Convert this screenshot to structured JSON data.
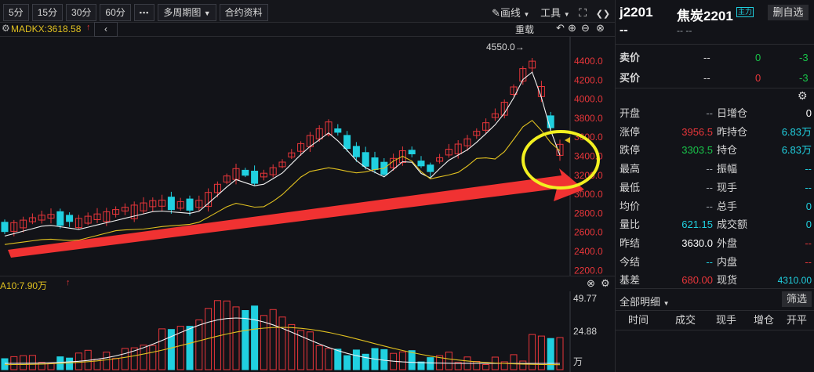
{
  "toolbar": {
    "periods": [
      "5分",
      "15分",
      "30分",
      "60分"
    ],
    "more_label": "▪▪▪",
    "multi_period_label": "多周期图",
    "contract_info_label": "合约资料",
    "draw_label": "画线",
    "tools_label": "工具"
  },
  "indicator_bar": {
    "ma_label": "MADKX:3618.58",
    "reload_label": "重载"
  },
  "price_chart": {
    "max_marker": "4550.0→",
    "axis_ticks": [
      "4400.0",
      "4200.0",
      "4000.0",
      "3800.0",
      "3600.0",
      "3400.0",
      "3200.0",
      "3000.0",
      "2800.0",
      "2600.0",
      "2400.0",
      "2200.0"
    ]
  },
  "volume_chart": {
    "label": "A10:7.90万",
    "axis_ticks": [
      "49.77",
      "24.88",
      "万"
    ]
  },
  "colors": {
    "up": "#e8363a",
    "down": "#20d0e0",
    "ma_fast": "#f2f2f2",
    "ma_slow": "#e0c020",
    "arrow": "#f03232",
    "highlight": "#f2f020"
  },
  "panel": {
    "code": "j2201",
    "name": "焦炭2201",
    "name_badge": "主力",
    "delete_button": "删自选",
    "price_placeholder": "--",
    "change_placeholder": "-- --",
    "sell": {
      "label": "卖价",
      "price": "--",
      "qty": "0",
      "change": "-3"
    },
    "buy": {
      "label": "买价",
      "price": "--",
      "qty": "0",
      "change": "-3"
    },
    "rows": [
      {
        "l1": "开盘",
        "v1": "--",
        "l2": "日增仓",
        "v2": "0"
      },
      {
        "l1": "涨停",
        "v1": "3956.5",
        "l2": "昨持仓",
        "v2": "6.83万"
      },
      {
        "l1": "跌停",
        "v1": "3303.5",
        "l2": "持仓",
        "v2": "6.83万"
      },
      {
        "l1": "最高",
        "v1": "--",
        "l2": "振幅",
        "v2": "--"
      },
      {
        "l1": "最低",
        "v1": "--",
        "l2": "现手",
        "v2": "--"
      },
      {
        "l1": "均价",
        "v1": "--",
        "l2": "总手",
        "v2": "0"
      },
      {
        "l1": "量比",
        "v1": "621.15",
        "l2": "成交额",
        "v2": "0"
      },
      {
        "l1": "昨结",
        "v1": "3630.0",
        "l2": "外盘",
        "v2": "--"
      },
      {
        "l1": "今结",
        "v1": "--",
        "l2": "内盘",
        "v2": "--"
      },
      {
        "l1": "基差",
        "v1": "680.00",
        "l2": "现货",
        "v2": "4310.00"
      }
    ],
    "detail_dropdown": "全部明细",
    "filter_button": "筛选",
    "detail_headers": [
      "时间",
      "成交",
      "现手",
      "增仓",
      "开平"
    ]
  }
}
